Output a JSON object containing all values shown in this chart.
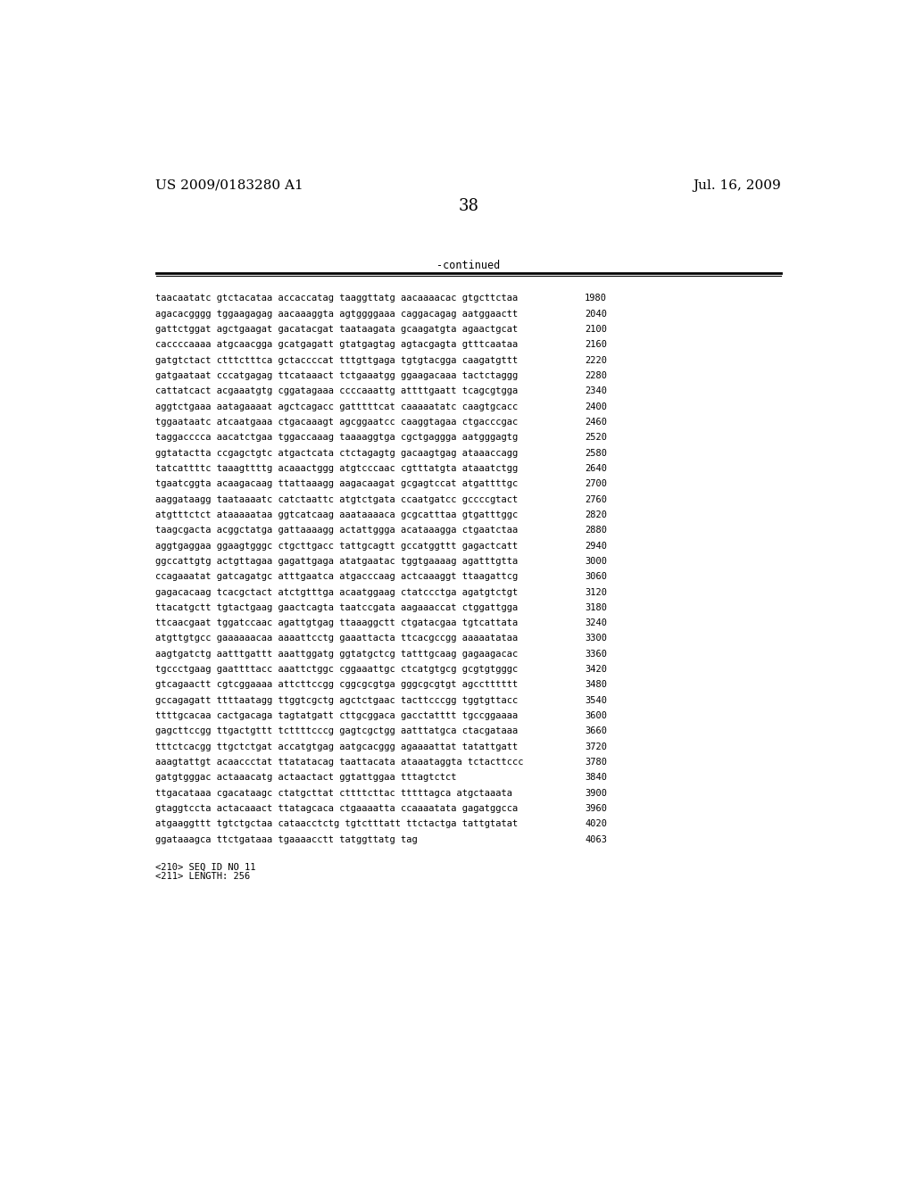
{
  "header_left": "US 2009/0183280 A1",
  "header_right": "Jul. 16, 2009",
  "page_number": "38",
  "continued_label": "-continued",
  "sequence_lines": [
    [
      "taacaatatc gtctacataa accaccatag taaggttatg aacaaaacac gtgcttctaa",
      "1980"
    ],
    [
      "agacacgggg tggaagagag aacaaaggta agtggggaaa caggacagag aatggaactt",
      "2040"
    ],
    [
      "gattctggat agctgaagat gacatacgat taataagata gcaagatgta agaactgcat",
      "2100"
    ],
    [
      "caccccaaaa atgcaacgga gcatgagatt gtatgagtag agtacgagta gtttcaataa",
      "2160"
    ],
    [
      "gatgtctact ctttctttca gctaccccat tttgttgaga tgtgtacgga caagatgttt",
      "2220"
    ],
    [
      "gatgaataat cccatgagag ttcataaact tctgaaatgg ggaagacaaa tactctaggg",
      "2280"
    ],
    [
      "cattatcact acgaaatgtg cggatagaaa ccccaaattg attttgaatt tcagcgtgga",
      "2340"
    ],
    [
      "aggtctgaaa aatagaaaat agctcagacc gatttttcat caaaaatatc caagtgcacc",
      "2400"
    ],
    [
      "tggaataatc atcaatgaaa ctgacaaagt agcggaatcc caaggtagaa ctgacccgac",
      "2460"
    ],
    [
      "taggacccca aacatctgaa tggaccaaag taaaaggtga cgctgaggga aatgggagtg",
      "2520"
    ],
    [
      "ggtatactta ccgagctgtc atgactcata ctctagagtg gacaagtgag ataaaccagg",
      "2580"
    ],
    [
      "tatcattttc taaagttttg acaaactggg atgtcccaac cgtttatgta ataaatctgg",
      "2640"
    ],
    [
      "tgaatcggta acaagacaag ttattaaagg aagacaagat gcgagtccat atgattttgc",
      "2700"
    ],
    [
      "aaggataagg taataaaatc catctaattc atgtctgata ccaatgatcc gccccgtact",
      "2760"
    ],
    [
      "atgtttctct ataaaaataa ggtcatcaag aaataaaaca gcgcatttaa gtgatttggc",
      "2820"
    ],
    [
      "taagcgacta acggctatga gattaaaagg actattggga acataaagga ctgaatctaa",
      "2880"
    ],
    [
      "aggtgaggaa ggaagtgggc ctgcttgacc tattgcagtt gccatggttt gagactcatt",
      "2940"
    ],
    [
      "ggccattgtg actgttagaa gagattgaga atatgaatac tggtgaaaag agatttgtta",
      "3000"
    ],
    [
      "ccagaaatat gatcagatgc atttgaatca atgacccaag actcaaaggt ttaagattcg",
      "3060"
    ],
    [
      "gagacacaag tcacgctact atctgtttga acaatggaag ctatccctga agatgtctgt",
      "3120"
    ],
    [
      "ttacatgctt tgtactgaag gaactcagta taatccgata aagaaaccat ctggattgga",
      "3180"
    ],
    [
      "ttcaacgaat tggatccaac agattgtgag ttaaaggctt ctgatacgaa tgtcattata",
      "3240"
    ],
    [
      "atgttgtgcc gaaaaaacaa aaaattcctg gaaattacta ttcacgccgg aaaaatataa",
      "3300"
    ],
    [
      "aagtgatctg aatttgattt aaattggatg ggtatgctcg tatttgcaag gagaagacac",
      "3360"
    ],
    [
      "tgccctgaag gaattttacc aaattctggc cggaaattgc ctcatgtgcg gcgtgtgggc",
      "3420"
    ],
    [
      "gtcagaactt cgtcggaaaa attcttccgg cggcgcgtga gggcgcgtgt agcctttttt",
      "3480"
    ],
    [
      "gccagagatt ttttaatagg ttggtcgctg agctctgaac tacttcccgg tggtgttacc",
      "3540"
    ],
    [
      "ttttgcacaa cactgacaga tagtatgatt cttgcggaca gacctatttt tgccggaaaa",
      "3600"
    ],
    [
      "gagcttccgg ttgactgttt tcttttcccg gagtcgctgg aatttatgca ctacgataaa",
      "3660"
    ],
    [
      "tttctcacgg ttgctctgat accatgtgag aatgcacggg agaaaattat tatattgatt",
      "3720"
    ],
    [
      "aaagtattgt acaaccctat ttatatacag taattacata ataaataggta tctacttccc",
      "3780"
    ],
    [
      "gatgtgggac actaaacatg actaactact ggtattggaa tttagtctct",
      "3840"
    ],
    [
      "ttgacataaa cgacataagc ctatgcttat cttttcttac tttttagca atgctaaata",
      "3900"
    ],
    [
      "gtaggtccta actacaaact ttatagcaca ctgaaaatta ccaaaatata gagatggcca",
      "3960"
    ],
    [
      "atgaaggttt tgtctgctaa cataacctctg tgtctttatt ttctactga tattgtatat",
      "4020"
    ],
    [
      "ggataaagca ttctgataaa tgaaaacctt tatggttatg tag",
      "4063"
    ]
  ],
  "footer_lines": [
    "<210> SEQ ID NO 11",
    "<211> LENGTH: 256"
  ],
  "bg_color": "#ffffff",
  "text_color": "#000000",
  "seq_font_size": 7.5,
  "header_font_size": 11,
  "page_num_font_size": 13,
  "continued_font_size": 8.5
}
